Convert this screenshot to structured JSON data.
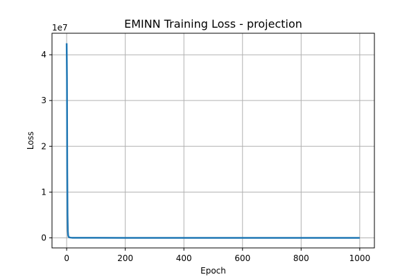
{
  "chart_data": {
    "type": "line",
    "title": "EMINN Training Loss - projection",
    "xlabel": "Epoch",
    "ylabel": "Loss",
    "y_offset_label": "1e7",
    "xlim": [
      -50,
      1050
    ],
    "ylim": [
      -2200000,
      44700000
    ],
    "y_scale": 10000000,
    "grid": true,
    "xticks": [
      0,
      200,
      400,
      600,
      800,
      1000
    ],
    "xtick_labels": [
      "0",
      "200",
      "400",
      "600",
      "800",
      "1000"
    ],
    "yticks": [
      0,
      10000000,
      20000000,
      30000000,
      40000000
    ],
    "ytick_labels": [
      "0",
      "1",
      "2",
      "3",
      "4"
    ],
    "series": [
      {
        "color": "#1f77b4",
        "x": [
          0,
          1,
          2,
          3,
          4,
          5,
          6,
          8,
          10,
          15,
          20,
          50,
          100,
          200,
          400,
          600,
          800,
          1000
        ],
        "y": [
          42500000,
          35000000,
          15000000,
          5000000,
          1500000,
          600000,
          300000,
          150000,
          80000,
          40000,
          20000,
          10000,
          5000,
          3000,
          2000,
          1500,
          1200,
          1000
        ]
      }
    ]
  }
}
